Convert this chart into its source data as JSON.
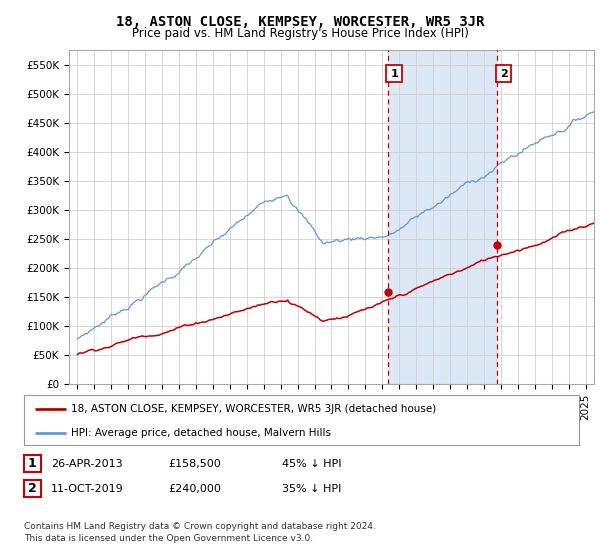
{
  "title": "18, ASTON CLOSE, KEMPSEY, WORCESTER, WR5 3JR",
  "subtitle": "Price paid vs. HM Land Registry's House Price Index (HPI)",
  "ylabel_ticks": [
    "£0",
    "£50K",
    "£100K",
    "£150K",
    "£200K",
    "£250K",
    "£300K",
    "£350K",
    "£400K",
    "£450K",
    "£500K",
    "£550K"
  ],
  "ytick_values": [
    0,
    50000,
    100000,
    150000,
    200000,
    250000,
    300000,
    350000,
    400000,
    450000,
    500000,
    550000
  ],
  "ylim": [
    0,
    575000
  ],
  "xlim_start": 1994.5,
  "xlim_end": 2025.5,
  "hpi_color": "#5b9bd5",
  "price_color": "#c00000",
  "sale1_date": 2013.32,
  "sale1_price": 158500,
  "sale2_date": 2019.78,
  "sale2_price": 240000,
  "vline_color": "#cc0000",
  "legend_label_price": "18, ASTON CLOSE, KEMPSEY, WORCESTER, WR5 3JR (detached house)",
  "legend_label_hpi": "HPI: Average price, detached house, Malvern Hills",
  "table_row1": [
    "1",
    "26-APR-2013",
    "£158,500",
    "45% ↓ HPI"
  ],
  "table_row2": [
    "2",
    "11-OCT-2019",
    "£240,000",
    "35% ↓ HPI"
  ],
  "footnote": "Contains HM Land Registry data © Crown copyright and database right 2024.\nThis data is licensed under the Open Government Licence v3.0.",
  "background_color": "#ffffff",
  "plot_bg_color": "#ffffff",
  "grid_color": "#d0d0d0",
  "shade_color": "#dce8f5"
}
